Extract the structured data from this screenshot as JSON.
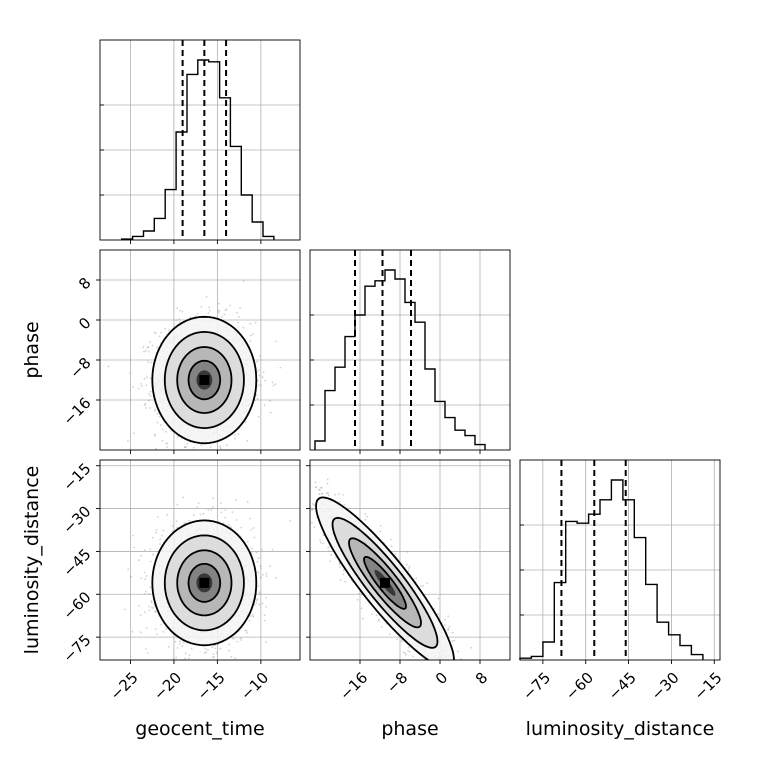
{
  "chart_data": {
    "type": "corner",
    "parameters": [
      "geocent_time",
      "phase",
      "luminosity_distance"
    ],
    "grid": true,
    "axes": {
      "geocent_time": {
        "lim": [
          -28.5,
          -5.5
        ],
        "ticks": [
          -25,
          -20,
          -15,
          -10
        ],
        "tick_labels": [
          "−25",
          "−20",
          "−15",
          "−10"
        ]
      },
      "phase": {
        "lim": [
          -26,
          14
        ],
        "ticks": [
          -16,
          -8,
          0,
          8
        ],
        "tick_labels": [
          "−16",
          "−8",
          "0",
          "8"
        ]
      },
      "luminosity_distance": {
        "lim": [
          -83,
          -13
        ],
        "ticks": [
          -75,
          -60,
          -45,
          -30,
          -15
        ],
        "tick_labels": [
          "−75",
          "−60",
          "−45",
          "−30",
          "−15"
        ]
      }
    },
    "diagonal": [
      {
        "parameter": "geocent_time",
        "edges": [
          -26,
          -24.75,
          -23.5,
          -22.25,
          -21,
          -19.75,
          -18.5,
          -17.25,
          -16,
          -14.75,
          -13.5,
          -12.25,
          -11,
          -9.75,
          -8.5
        ],
        "counts": [
          0.5,
          2,
          5,
          12,
          28,
          60,
          92,
          100,
          99,
          79,
          52,
          25,
          10,
          2
        ],
        "quantiles": [
          -19,
          -16.5,
          -14
        ]
      },
      {
        "parameter": "phase",
        "edges": [
          -25,
          -23,
          -21,
          -19,
          -17,
          -15,
          -13,
          -11,
          -9,
          -7,
          -5,
          -3,
          -1,
          1,
          3,
          5,
          7,
          9
        ],
        "counts": [
          5,
          33,
          46,
          63,
          75,
          91,
          94,
          100,
          95,
          82,
          71,
          45,
          27,
          18,
          11,
          8,
          3
        ],
        "quantiles": [
          -17,
          -11.5,
          -5.8
        ]
      },
      {
        "parameter": "luminosity_distance",
        "edges": [
          -83,
          -79,
          -75,
          -71,
          -67,
          -63,
          -59,
          -55,
          -51,
          -47,
          -43,
          -39,
          -35,
          -31,
          -27,
          -23,
          -19
        ],
        "counts": [
          1,
          2,
          10,
          43,
          77,
          76,
          81,
          89,
          100,
          89,
          68,
          42,
          21,
          14,
          8,
          3
        ],
        "quantiles": [
          -68.5,
          -57,
          -46
        ]
      }
    ],
    "pairs": [
      {
        "x": "geocent_time",
        "y": "phase",
        "center": [
          -16.5,
          -12
        ],
        "spread": [
          2.6,
          5.5
        ],
        "correlation": 0.0,
        "contours": 4
      },
      {
        "x": "geocent_time",
        "y": "luminosity_distance",
        "center": [
          -16.5,
          -56
        ],
        "spread": [
          2.6,
          9.5
        ],
        "correlation": 0.0,
        "contours": 4
      },
      {
        "x": "phase",
        "y": "luminosity_distance",
        "center": [
          -11,
          -56
        ],
        "spread": [
          6,
          13
        ],
        "correlation": -0.9,
        "contours": 4
      }
    ]
  }
}
